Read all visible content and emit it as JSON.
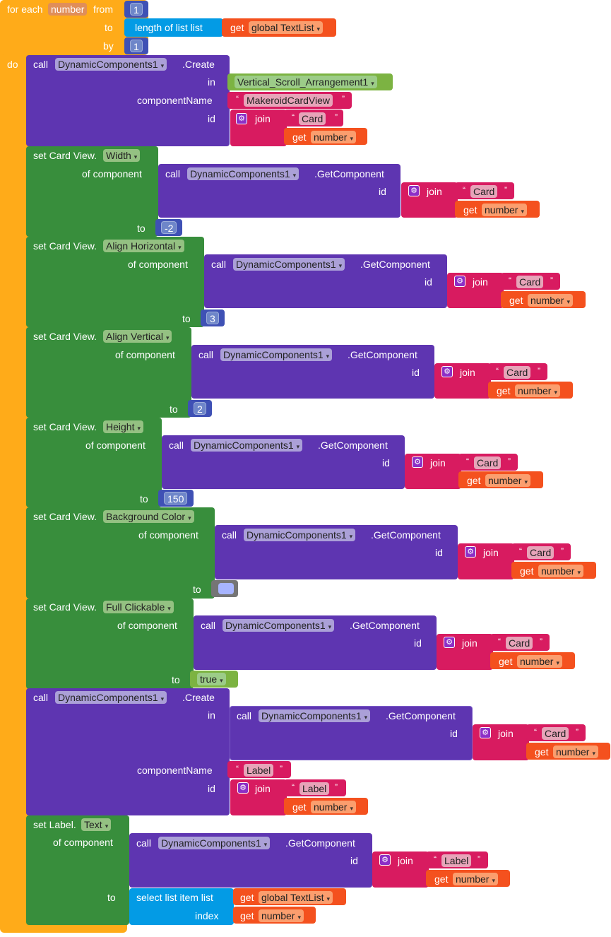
{
  "loop": {
    "for_each": "for each",
    "var": "number",
    "from": "from",
    "from_val": "1",
    "to": "to",
    "length": "length of list  list",
    "get": "get",
    "global_list": "global TextList",
    "by": "by",
    "by_val": "1",
    "do": "do"
  },
  "common": {
    "call": "call",
    "dyn": "DynamicComponents1",
    "create": ".Create",
    "getcomp": ".GetComponent",
    "in": "in",
    "componentName": "componentName",
    "id": "id",
    "join": "join",
    "card": "Card",
    "get": "get",
    "number": "number",
    "of_component": "of component",
    "to": "to",
    "label": "Label",
    "set_card": "set Card View.",
    "set_label": "set Label.",
    "open_q": "“",
    "close_q": "”",
    "caret": "▾"
  },
  "create1": {
    "in_value": "Vertical_Scroll_Arrangement1",
    "component_name": "MakeroidCardView"
  },
  "setters": [
    {
      "property": "Width",
      "value": "-2"
    },
    {
      "property": "Align Horizontal",
      "value": "3"
    },
    {
      "property": "Align Vertical",
      "value": "2"
    },
    {
      "property": "Height",
      "value": "150"
    },
    {
      "property": "Background Color",
      "value": ""
    },
    {
      "property": "Full Clickable",
      "value": "true"
    }
  ],
  "label_setter": {
    "property": "Text",
    "select": "select list item  list",
    "index": "index",
    "global_list": "global TextList"
  },
  "colors": {
    "loop": "#ffab19",
    "procedure": "#5e35b1",
    "setter": "#388e3c",
    "text": "#d81b60",
    "variable": "#f4511e",
    "list": "#039be5",
    "math": "#3f51b5",
    "component": "#7cb342",
    "color_swatch": "#a7b4ff"
  }
}
